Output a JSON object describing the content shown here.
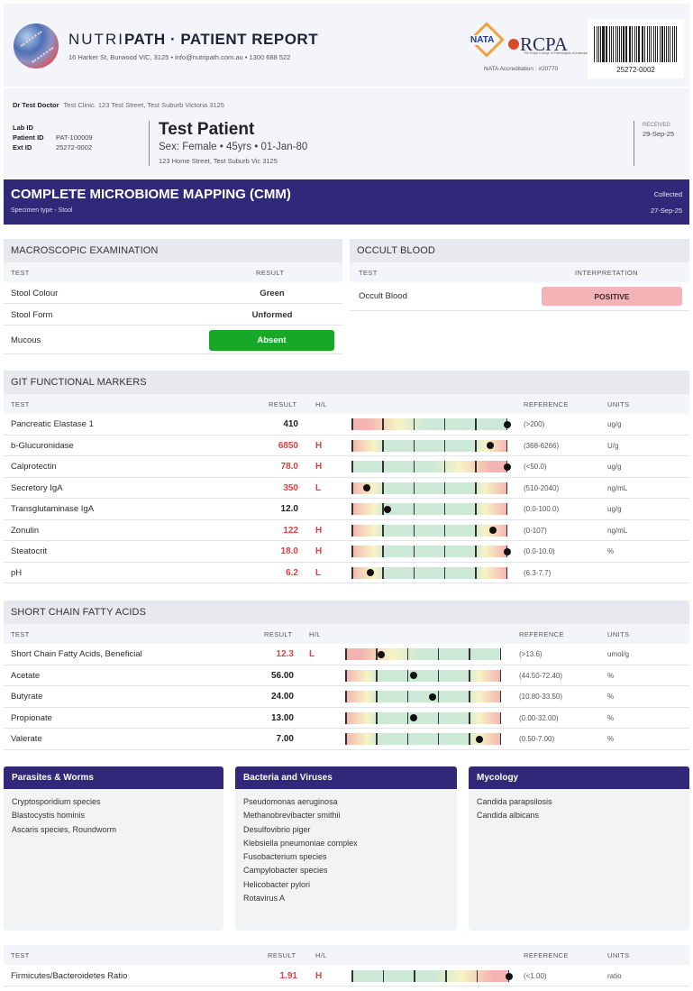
{
  "header": {
    "brand_light": "NUTRI",
    "brand_bold": "PATH",
    "separator": " · ",
    "report_title": "PATIENT REPORT",
    "contact": "16 Harker St, Burwood VIC, 3125  •  info@nutripath.com.au  •  1300 688 522",
    "nata_label": "NATA",
    "rcpa_label": "RCPA",
    "rcpa_subtitle": "The Royal College of Pathologists of Australasia",
    "accreditation": "NATA Accreditation : #20770",
    "barcode_number": "25272-0002"
  },
  "patient": {
    "doctor_name": "Dr Test Doctor",
    "doctor_clinic": "Test Clinic. 123 Test Street, Test Suburb Victoria 3125",
    "ids": [
      {
        "label": "Lab ID",
        "value": ""
      },
      {
        "label": "Patient ID",
        "value": "PAT-100009"
      },
      {
        "label": "Ext ID",
        "value": "25272-0002"
      }
    ],
    "name": "Test Patient",
    "info": "Sex: Female  •  45yrs  •  01-Jan-80",
    "address": "123 Home Street, Test Suburb Vic 3125",
    "received_label": "RECEIVED",
    "received_date": "29-Sep-25"
  },
  "banner": {
    "title": "COMPLETE MICROBIOME MAPPING (CMM)",
    "specimen": "Specimen type - Stool",
    "collected_label": "Collected",
    "collected_date": "27-Sep-25"
  },
  "macroscopic": {
    "title": "MACROSCOPIC EXAMINATION",
    "col_test": "TEST",
    "col_result": "RESULT",
    "rows": [
      {
        "test": "Stool Colour",
        "result": "Green"
      },
      {
        "test": "Stool Form",
        "result": "Unformed"
      },
      {
        "test": "Mucous",
        "result": "Absent"
      }
    ]
  },
  "occult": {
    "title": "OCCULT BLOOD",
    "col_test": "TEST",
    "col_interp": "INTERPRETATION",
    "rows": [
      {
        "test": "Occult Blood",
        "result": "POSITIVE"
      }
    ]
  },
  "colors": {
    "brand_purple": "#32287a",
    "high_low_red": "#e14040",
    "absent_green": "#18a828",
    "positive_pink": "#f4b3b6"
  },
  "git": {
    "title": "GIT FUNCTIONAL MARKERS",
    "cols": {
      "test": "TEST",
      "result": "RESULT",
      "hl": "H/L",
      "reference": "REFERENCE",
      "units": "UNITS"
    },
    "rows": [
      {
        "test": "Pancreatic Elastase 1",
        "result": "410",
        "flag": "",
        "reference": "(>200)",
        "units": "ug/g",
        "scale": "low-bad",
        "marker": 1.0
      },
      {
        "test": "b-Glucuronidase",
        "result": "6850",
        "flag": "H",
        "reference": "(368-6266)",
        "units": "U/g",
        "scale": "both",
        "marker": 0.89
      },
      {
        "test": "Calprotectin",
        "result": "78.0",
        "flag": "H",
        "reference": "(<50.0)",
        "units": "ug/g",
        "scale": "high-bad",
        "marker": 1.0
      },
      {
        "test": "Secretory IgA",
        "result": "350",
        "flag": "L",
        "reference": "(510-2040)",
        "units": "ng/mL",
        "scale": "both",
        "marker": 0.1
      },
      {
        "test": "Transglutaminase IgA",
        "result": "12.0",
        "flag": "",
        "reference": "(0.0-100.0)",
        "units": "ug/g",
        "scale": "both",
        "marker": 0.23
      },
      {
        "test": "Zonulin",
        "result": "122",
        "flag": "H",
        "reference": "(0-107)",
        "units": "ng/mL",
        "scale": "both",
        "marker": 0.91
      },
      {
        "test": "Steatocrit",
        "result": "18.0",
        "flag": "H",
        "reference": "(0.0-10.0)",
        "units": "%",
        "scale": "both",
        "marker": 1.0
      },
      {
        "test": "pH",
        "result": "6.2",
        "flag": "L",
        "reference": "(6.3-7.7)",
        "units": "",
        "scale": "both",
        "marker": 0.12
      }
    ]
  },
  "scfa": {
    "title": "SHORT CHAIN FATTY ACIDS",
    "cols": {
      "test": "TEST",
      "result": "RESULT",
      "hl": "H/L",
      "reference": "REFERENCE",
      "units": "UNITS"
    },
    "rows": [
      {
        "test": "Short Chain Fatty Acids, Beneficial",
        "result": "12.3",
        "flag": "L",
        "reference": "(>13.6)",
        "units": "umol/g",
        "scale": "low-bad",
        "marker": 0.23
      },
      {
        "test": "Acetate",
        "result": "56.00",
        "flag": "",
        "reference": "(44.50-72.40)",
        "units": "%",
        "scale": "both",
        "marker": 0.44
      },
      {
        "test": "Butyrate",
        "result": "24.00",
        "flag": "",
        "reference": "(10.80-33.50)",
        "units": "%",
        "scale": "both",
        "marker": 0.56
      },
      {
        "test": "Propionate",
        "result": "13.00",
        "flag": "",
        "reference": "(0.00-32.00)",
        "units": "%",
        "scale": "both",
        "marker": 0.44
      },
      {
        "test": "Valerate",
        "result": "7.00",
        "flag": "",
        "reference": "(0.50-7.00)",
        "units": "%",
        "scale": "both",
        "marker": 0.86
      }
    ]
  },
  "cards": [
    {
      "title": "Parasites & Worms",
      "items": [
        "Cryptosporidium species",
        "Blastocystis hominis",
        "Ascaris species, Roundworm"
      ]
    },
    {
      "title": "Bacteria and Viruses",
      "items": [
        "Pseudomonas aeruginosa",
        "Methanobrevibacter smithii",
        "Desulfovibrio piger",
        "Klebsiella pneumoniae complex",
        "Fusobacterium species",
        "Campylobacter species",
        "Helicobacter pylori",
        "Rotavirus A"
      ]
    },
    {
      "title": "Mycology",
      "items": [
        "Candida parapsilosis",
        "Candida albicans"
      ]
    }
  ],
  "ratio": {
    "cols": {
      "test": "TEST",
      "result": "RESULT",
      "hl": "H/L",
      "reference": "REFERENCE",
      "units": "UNITS"
    },
    "rows": [
      {
        "test": "Firmicutes/Bacteroidetes Ratio",
        "result": "1.91",
        "flag": "H",
        "reference": "(<1.00)",
        "units": "ratio",
        "scale": "high-bad",
        "marker": 1.0
      }
    ]
  }
}
